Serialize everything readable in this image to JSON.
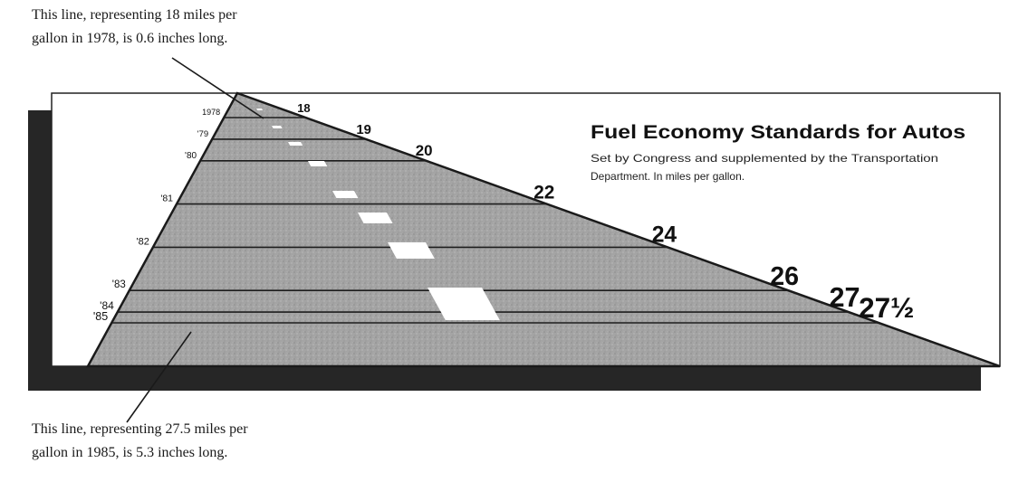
{
  "annotations": {
    "top": {
      "line1": "This line, representing 18 miles per",
      "line2": "gallon in 1978, is 0.6 inches long."
    },
    "bottom": {
      "line1": "This line, representing 27.5 miles per",
      "line2": "gallon in 1985, is 5.3 inches long."
    }
  },
  "chart_data": {
    "type": "bar",
    "title": "Fuel Economy Standards for Autos",
    "subtitle_line1": "Set by Congress and supplemented by the Transportation",
    "subtitle_line2": "Department. In miles per gallon.",
    "categories": [
      "1978",
      "'79",
      "'80",
      "'81",
      "'82",
      "'83",
      "'84",
      "'85"
    ],
    "values": [
      18,
      19,
      20,
      22,
      24,
      26,
      27,
      27.5
    ],
    "value_labels": [
      "18",
      "19",
      "20",
      "22",
      "24",
      "26",
      "27",
      "27½"
    ],
    "orientation": "horizontal",
    "grid": false,
    "colors": {
      "road": "#a6a6a6",
      "shadow": "#262626",
      "lines": "#1c1c1c",
      "dashes": "#ffffff"
    }
  }
}
